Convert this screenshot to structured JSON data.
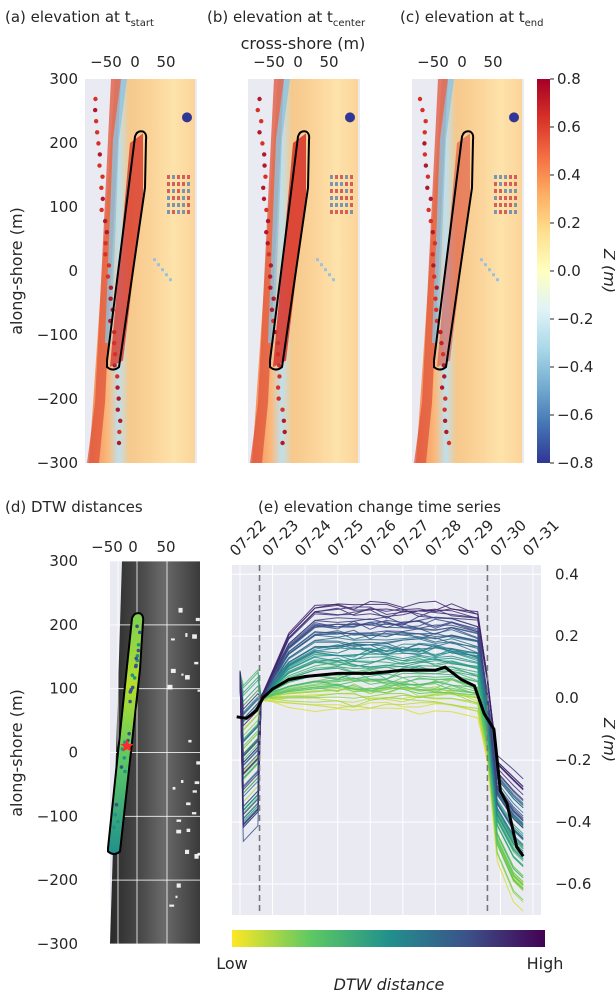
{
  "panels": {
    "a": {
      "title": "(a) elevation at t",
      "sub": "start"
    },
    "b": {
      "title": "(b) elevation at t",
      "sub": "center"
    },
    "c": {
      "title": "(c) elevation at t",
      "sub": "end"
    },
    "d": {
      "title": "(d) DTW distances"
    },
    "e": {
      "title": "(e) elevation change time series"
    }
  },
  "axes": {
    "cross_shore_label": "cross-shore (m)",
    "along_shore_label": "along-shore (m)",
    "x_ticks": [
      "−50",
      "0",
      "50"
    ],
    "y_ticks": [
      "300",
      "200",
      "100",
      "0",
      "−100",
      "−200",
      "−300"
    ],
    "z_label": "Z (m)"
  },
  "colorbar": {
    "ticks": [
      "0.8",
      "0.6",
      "0.4",
      "0.2",
      "0.0",
      "−0.2",
      "−0.4",
      "−0.6",
      "−0.8"
    ],
    "range": [
      -0.8,
      0.8
    ],
    "colormap": "RdYlBu_r"
  },
  "dtw_colorbar": {
    "low": "Low",
    "high": "High",
    "label": "DTW distance",
    "colormap": "viridis_r"
  },
  "chart_data": {
    "type": "line",
    "x": [
      "07-22",
      "07-23",
      "07-24",
      "07-25",
      "07-26",
      "07-27",
      "07-28",
      "07-29",
      "07-30",
      "07-31"
    ],
    "y_ticks": [
      "0.4",
      "0.2",
      "0.0",
      "−0.2",
      "−0.4",
      "−0.6"
    ],
    "ylim": [
      -0.7,
      0.43
    ],
    "ylabel": "Z (m)",
    "vlines": [
      "07-22.6",
      "07-29.6"
    ],
    "median_series": [
      [
        21.9,
        -0.06
      ],
      [
        22.2,
        -0.065
      ],
      [
        22.5,
        -0.04
      ],
      [
        22.7,
        0.0
      ],
      [
        23.0,
        0.03
      ],
      [
        23.5,
        0.06
      ],
      [
        24.0,
        0.07
      ],
      [
        25.0,
        0.08
      ],
      [
        26.0,
        0.08
      ],
      [
        27.0,
        0.09
      ],
      [
        28.0,
        0.09
      ],
      [
        28.3,
        0.1
      ],
      [
        28.8,
        0.06
      ],
      [
        29.2,
        0.04
      ],
      [
        29.5,
        -0.05
      ],
      [
        29.8,
        -0.1
      ],
      [
        30.0,
        -0.3
      ],
      [
        30.2,
        -0.34
      ],
      [
        30.5,
        -0.48
      ],
      [
        30.7,
        -0.51
      ]
    ]
  }
}
